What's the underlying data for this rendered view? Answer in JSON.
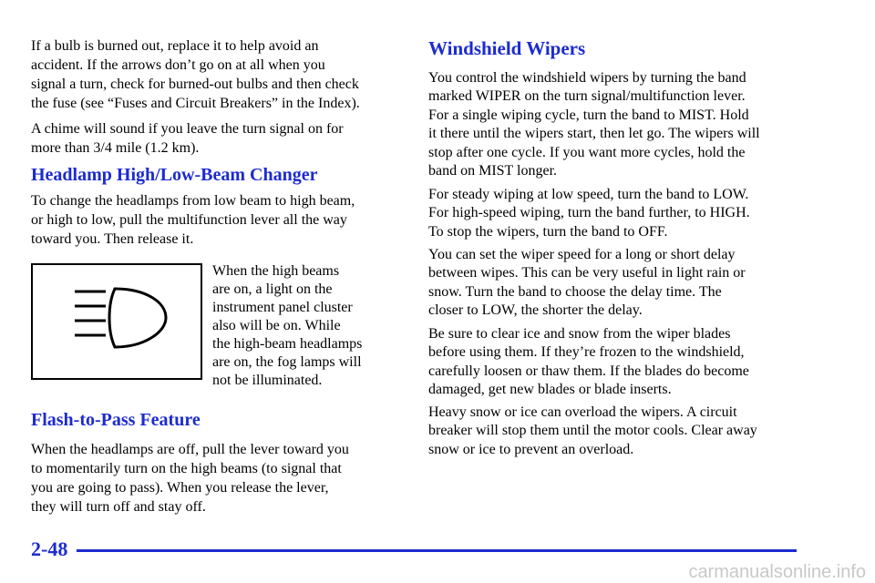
{
  "left": {
    "intro": [
      [
        "If a bulb is burned out, replace it to help avoid an",
        "accident. If the arrows don’t go on at all when you",
        "signal a turn, check for burned-out bulbs and then check",
        "the fuse (see “Fuses and Circuit Breakers” in the Index)."
      ],
      [
        "A chime will sound if you leave the turn signal on for",
        "more than 3/4 mile (1.2 km)."
      ]
    ],
    "headlamp": {
      "heading": "Headlamp High/Low-Beam Changer",
      "paragraph": [
        "To change the headlamps from low beam to high beam,",
        "or high to low, pull the multifunction lever all the way",
        "toward you. Then release it."
      ],
      "caption": [
        "When the high beams",
        "are on, a light on the",
        "instrument panel cluster",
        "also will be on. While",
        "the high-beam headlamps",
        "are on, the fog lamps will",
        "not be illuminated."
      ]
    },
    "flash": {
      "heading": "Flash-to-Pass Feature",
      "paragraph": [
        "When the headlamps are off, pull the lever toward you",
        "to momentarily turn on the high beams (to signal that",
        "you are going to pass). When you release the lever,",
        "they will turn off and stay off."
      ]
    }
  },
  "right": {
    "heading": "Windshield Wipers",
    "paragraphs": [
      [
        "You control the windshield wipers by turning the band",
        "marked WIPER on the turn signal/multifunction lever.",
        "For a single wiping cycle, turn the band to MIST. Hold",
        "it there until the wipers start, then let go. The wipers will",
        "stop after one cycle. If you want more cycles, hold the",
        "band on MIST longer."
      ],
      [
        "For steady wiping at low speed, turn the band to LOW.",
        "For high-speed wiping, turn the band further, to HIGH.",
        "To stop the wipers, turn the band to OFF."
      ],
      [
        "You can set the wiper speed for a long or short delay",
        "between wipes. This can be very useful in light rain or",
        "snow. Turn the band to choose the delay time. The",
        "closer to LOW, the shorter the delay."
      ],
      [
        "Be sure to clear ice and snow from the wiper blades",
        "before using them. If they’re frozen to the windshield,",
        "carefully loosen or thaw them. If the blades do become",
        "damaged, get new blades or blade inserts."
      ],
      [
        "Heavy snow or ice can overload the wipers. A circuit",
        "breaker will stop them until the motor cools. Clear away",
        "snow or ice to prevent an overload."
      ]
    ]
  },
  "footer": {
    "page_number": "2-48",
    "watermark": "carmanualsonline.info"
  }
}
